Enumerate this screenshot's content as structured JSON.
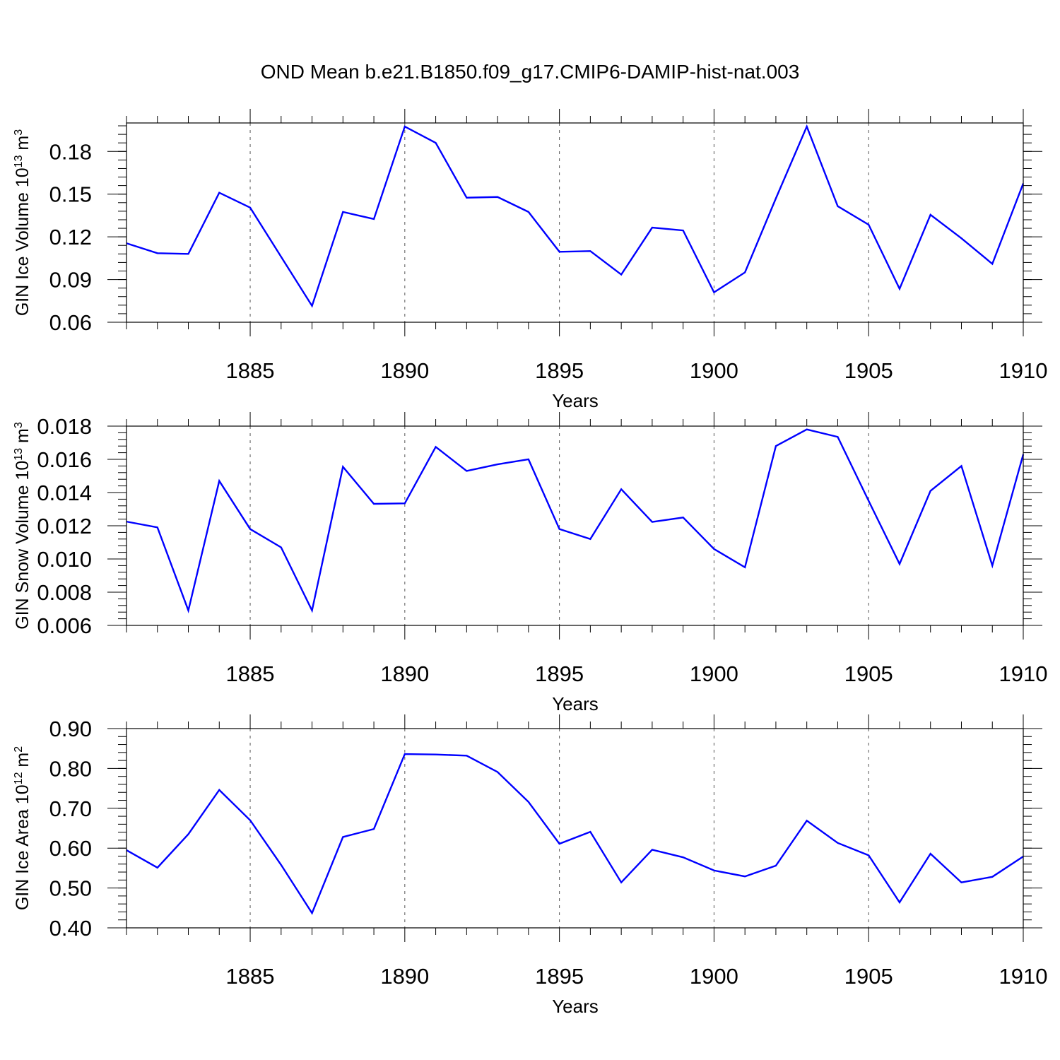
{
  "title": "OND Mean b.e21.B1850.f09_g17.CMIP6-DAMIP-hist-nat.003",
  "line_color": "#0000ff",
  "chart_data": [
    {
      "type": "line",
      "ylabel": "GIN Ice Volume 10",
      "ylabel_exp": "13",
      "ylabel_unit": " m",
      "ylabel_unit_exp": "3",
      "xlabel": "Years",
      "xlim": [
        1881,
        1910
      ],
      "ylim": [
        0.06,
        0.2
      ],
      "grid_x": true,
      "x_ticks": [
        1885,
        1890,
        1895,
        1900,
        1905,
        1910
      ],
      "y_ticks": [
        0.06,
        0.09,
        0.12,
        0.15,
        0.18
      ],
      "y_tick_labels": [
        "0.06",
        "0.09",
        "0.12",
        "0.15",
        "0.18"
      ],
      "y_minor_step": 0.006,
      "x": [
        1881,
        1882,
        1883,
        1884,
        1885,
        1886,
        1887,
        1888,
        1889,
        1890,
        1891,
        1892,
        1893,
        1894,
        1895,
        1896,
        1897,
        1898,
        1899,
        1900,
        1901,
        1902,
        1903,
        1904,
        1905,
        1906,
        1907,
        1908,
        1909,
        1910
      ],
      "values": [
        0.1155,
        0.1085,
        0.108,
        0.151,
        0.1405,
        0.106,
        0.0715,
        0.1375,
        0.1325,
        0.1975,
        0.186,
        0.1475,
        0.148,
        0.1375,
        0.1095,
        0.11,
        0.0935,
        0.1265,
        0.1245,
        0.081,
        0.095,
        0.147,
        0.1975,
        0.1415,
        0.1285,
        0.0835,
        0.1355,
        0.119,
        0.101,
        0.1575
      ]
    },
    {
      "type": "line",
      "ylabel": "GIN Snow Volume 10",
      "ylabel_exp": "13",
      "ylabel_unit": " m",
      "ylabel_unit_exp": "3",
      "xlabel": "Years",
      "xlim": [
        1881,
        1910
      ],
      "ylim": [
        0.006,
        0.018
      ],
      "grid_x": true,
      "x_ticks": [
        1885,
        1890,
        1895,
        1900,
        1905,
        1910
      ],
      "y_ticks": [
        0.006,
        0.008,
        0.01,
        0.012,
        0.014,
        0.016,
        0.018
      ],
      "y_tick_labels": [
        "0.006",
        "0.008",
        "0.010",
        "0.012",
        "0.014",
        "0.016",
        "0.018"
      ],
      "y_minor_step": 0.0004,
      "x": [
        1881,
        1882,
        1883,
        1884,
        1885,
        1886,
        1887,
        1888,
        1889,
        1890,
        1891,
        1892,
        1893,
        1894,
        1895,
        1896,
        1897,
        1898,
        1899,
        1900,
        1901,
        1902,
        1903,
        1904,
        1905,
        1906,
        1907,
        1908,
        1909,
        1910
      ],
      "values": [
        0.01225,
        0.0119,
        0.0069,
        0.0147,
        0.0118,
        0.0107,
        0.0069,
        0.01555,
        0.01332,
        0.01335,
        0.01675,
        0.0153,
        0.0157,
        0.016,
        0.0118,
        0.0112,
        0.0142,
        0.01223,
        0.0125,
        0.0106,
        0.0095,
        0.0168,
        0.0178,
        0.01735,
        0.0135,
        0.0097,
        0.0141,
        0.0156,
        0.0096,
        0.0163
      ]
    },
    {
      "type": "line",
      "ylabel": "GIN Ice Area 10",
      "ylabel_exp": "12",
      "ylabel_unit": " m",
      "ylabel_unit_exp": "2",
      "xlabel": "Years",
      "xlim": [
        1881,
        1910
      ],
      "ylim": [
        0.4,
        0.9
      ],
      "grid_x": true,
      "x_ticks": [
        1885,
        1890,
        1895,
        1900,
        1905,
        1910
      ],
      "y_ticks": [
        0.4,
        0.5,
        0.6,
        0.7,
        0.8,
        0.9
      ],
      "y_tick_labels": [
        "0.40",
        "0.50",
        "0.60",
        "0.70",
        "0.80",
        "0.90"
      ],
      "y_minor_step": 0.02,
      "x": [
        1881,
        1882,
        1883,
        1884,
        1885,
        1886,
        1887,
        1888,
        1889,
        1890,
        1891,
        1892,
        1893,
        1894,
        1895,
        1896,
        1897,
        1898,
        1899,
        1900,
        1901,
        1902,
        1903,
        1904,
        1905,
        1906,
        1907,
        1908,
        1909,
        1910
      ],
      "values": [
        0.595,
        0.551,
        0.635,
        0.746,
        0.67,
        0.558,
        0.437,
        0.628,
        0.648,
        0.836,
        0.835,
        0.832,
        0.791,
        0.716,
        0.611,
        0.641,
        0.514,
        0.596,
        0.577,
        0.544,
        0.529,
        0.556,
        0.669,
        0.613,
        0.582,
        0.464,
        0.586,
        0.514,
        0.528,
        0.579
      ]
    }
  ]
}
